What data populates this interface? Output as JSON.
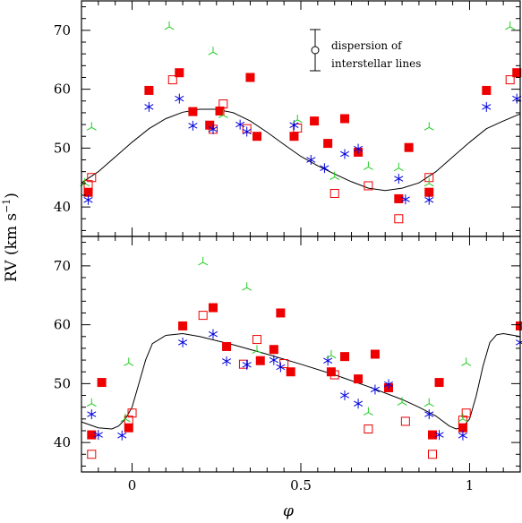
{
  "chart_data": [
    {
      "panel": "top",
      "type": "scatter",
      "xlim": [
        -0.15,
        1.15
      ],
      "ylim": [
        35,
        75
      ],
      "yticks": [
        40,
        50,
        60,
        70
      ],
      "ylabel": "RV  (km s",
      "ylabel_sup": "−1",
      "ylabel_close": ")",
      "legend": {
        "marker": "open circle with error bar",
        "label_line1": "dispersion of",
        "label_line2": "interstellar lines",
        "placement": "top-right"
      },
      "curve": [
        [
          -0.15,
          44.1
        ],
        [
          -0.1,
          46
        ],
        [
          -0.05,
          48.5
        ],
        [
          0,
          51
        ],
        [
          0.05,
          53.3
        ],
        [
          0.1,
          55
        ],
        [
          0.15,
          56.1
        ],
        [
          0.2,
          56.6
        ],
        [
          0.25,
          56.6
        ],
        [
          0.3,
          56
        ],
        [
          0.35,
          54.6
        ],
        [
          0.4,
          52.7
        ],
        [
          0.45,
          50.6
        ],
        [
          0.5,
          48.6
        ],
        [
          0.55,
          47
        ],
        [
          0.6,
          45.6
        ],
        [
          0.65,
          44.3
        ],
        [
          0.7,
          43.2
        ],
        [
          0.75,
          42.8
        ],
        [
          0.8,
          43.2
        ],
        [
          0.85,
          44.1
        ],
        [
          0.9,
          46
        ],
        [
          0.95,
          48.5
        ],
        [
          1,
          51
        ],
        [
          1.05,
          53.3
        ],
        [
          1.1,
          54.6
        ],
        [
          1.15,
          55.8
        ]
      ],
      "series": [
        {
          "marker": "filled-square",
          "color": "#ee0000",
          "points": [
            [
              -0.13,
              42.5
            ],
            [
              0.05,
              59.8
            ],
            [
              0.14,
              62.8
            ],
            [
              0.18,
              56.2
            ],
            [
              0.23,
              53.9
            ],
            [
              0.26,
              56.3
            ],
            [
              0.35,
              62
            ],
            [
              0.37,
              52
            ],
            [
              0.48,
              52
            ],
            [
              0.54,
              54.6
            ],
            [
              0.58,
              50.8
            ],
            [
              0.63,
              55
            ],
            [
              0.67,
              49.3
            ],
            [
              0.79,
              41.4
            ],
            [
              0.82,
              50.1
            ],
            [
              0.88,
              42.5
            ],
            [
              1.05,
              59.8
            ],
            [
              1.14,
              62.8
            ]
          ]
        },
        {
          "marker": "open-square",
          "color": "#ee0000",
          "points": [
            [
              -0.13,
              43.8
            ],
            [
              -0.12,
              45
            ],
            [
              0.12,
              61.6
            ],
            [
              0.24,
              53.2
            ],
            [
              0.27,
              57.5
            ],
            [
              0.34,
              53.3
            ],
            [
              0.49,
              53.4
            ],
            [
              0.6,
              42.3
            ],
            [
              0.7,
              43.6
            ],
            [
              0.79,
              38
            ],
            [
              0.88,
              45
            ],
            [
              1.12,
              61.6
            ]
          ]
        },
        {
          "marker": "asterisk",
          "color": "#0000dd",
          "points": [
            [
              -0.13,
              41.2
            ],
            [
              0.05,
              57
            ],
            [
              0.14,
              58.4
            ],
            [
              0.18,
              53.8
            ],
            [
              0.24,
              53.2
            ],
            [
              0.32,
              54
            ],
            [
              0.34,
              52.8
            ],
            [
              0.48,
              53.9
            ],
            [
              0.53,
              48
            ],
            [
              0.57,
              46.6
            ],
            [
              0.63,
              49
            ],
            [
              0.67,
              49.9
            ],
            [
              0.79,
              44.8
            ],
            [
              0.81,
              41.3
            ],
            [
              0.88,
              41.2
            ],
            [
              1.05,
              57
            ],
            [
              1.14,
              58.4
            ]
          ]
        },
        {
          "marker": "tri-spike",
          "color": "#22cc22",
          "points": [
            [
              -0.14,
              44
            ],
            [
              -0.12,
              53.5
            ],
            [
              0.11,
              70.6
            ],
            [
              0.24,
              66.3
            ],
            [
              0.27,
              55.6
            ],
            [
              0.49,
              54.8
            ],
            [
              0.6,
              45.1
            ],
            [
              0.7,
              46.8
            ],
            [
              0.79,
              46.6
            ],
            [
              0.88,
              44
            ],
            [
              0.88,
              53.5
            ],
            [
              1.12,
              70.6
            ]
          ]
        }
      ]
    },
    {
      "panel": "bottom",
      "type": "scatter",
      "xlim": [
        -0.15,
        1.15
      ],
      "ylim": [
        35,
        75
      ],
      "xticks": [
        0,
        0.5,
        1
      ],
      "xticklabels": [
        "0",
        "0.5",
        "1"
      ],
      "yticks": [
        40,
        50,
        60,
        70
      ],
      "xlabel": "φ",
      "curve": [
        [
          -0.15,
          43.5
        ],
        [
          -0.1,
          42.5
        ],
        [
          -0.06,
          42.3
        ],
        [
          -0.04,
          42.8
        ],
        [
          -0.02,
          44
        ],
        [
          0,
          46
        ],
        [
          0.02,
          50
        ],
        [
          0.04,
          54
        ],
        [
          0.06,
          56.8
        ],
        [
          0.1,
          58.2
        ],
        [
          0.15,
          58.5
        ],
        [
          0.2,
          58
        ],
        [
          0.3,
          56.6
        ],
        [
          0.4,
          55
        ],
        [
          0.5,
          53.3
        ],
        [
          0.6,
          51.5
        ],
        [
          0.7,
          49.5
        ],
        [
          0.8,
          47.3
        ],
        [
          0.85,
          46
        ],
        [
          0.9,
          44.5
        ],
        [
          0.94,
          42.8
        ],
        [
          0.96,
          42.3
        ],
        [
          0.98,
          42.6
        ],
        [
          1,
          44
        ],
        [
          1.02,
          48
        ],
        [
          1.04,
          53
        ],
        [
          1.06,
          57
        ],
        [
          1.08,
          58.3
        ],
        [
          1.1,
          58.5
        ],
        [
          1.15,
          58
        ]
      ],
      "series": [
        {
          "marker": "filled-square",
          "color": "#ee0000",
          "points": [
            [
              -0.12,
              41.3
            ],
            [
              -0.09,
              50.2
            ],
            [
              -0.01,
              42.5
            ],
            [
              0.15,
              59.8
            ],
            [
              0.24,
              62.9
            ],
            [
              0.28,
              56.3
            ],
            [
              0.38,
              53.9
            ],
            [
              0.42,
              55.8
            ],
            [
              0.44,
              62
            ],
            [
              0.47,
              52
            ],
            [
              0.59,
              52
            ],
            [
              0.63,
              54.6
            ],
            [
              0.67,
              50.8
            ],
            [
              0.72,
              55
            ],
            [
              0.76,
              49.3
            ],
            [
              0.89,
              41.3
            ],
            [
              0.91,
              50.2
            ],
            [
              0.98,
              42.5
            ],
            [
              1.15,
              59.8
            ]
          ]
        },
        {
          "marker": "open-square",
          "color": "#ee0000",
          "points": [
            [
              -0.12,
              38
            ],
            [
              -0.01,
              43.8
            ],
            [
              0,
              45
            ],
            [
              0.21,
              61.6
            ],
            [
              0.33,
              53.3
            ],
            [
              0.37,
              57.5
            ],
            [
              0.45,
              53.4
            ],
            [
              0.6,
              51.5
            ],
            [
              0.7,
              42.3
            ],
            [
              0.81,
              43.6
            ],
            [
              0.89,
              38
            ],
            [
              0.98,
              43.8
            ],
            [
              0.99,
              45
            ]
          ]
        },
        {
          "marker": "asterisk",
          "color": "#0000dd",
          "points": [
            [
              -0.12,
              44.8
            ],
            [
              -0.1,
              41.3
            ],
            [
              -0.03,
              41.2
            ],
            [
              0.15,
              57
            ],
            [
              0.24,
              58.4
            ],
            [
              0.28,
              53.8
            ],
            [
              0.34,
              53.2
            ],
            [
              0.42,
              54
            ],
            [
              0.44,
              52.8
            ],
            [
              0.58,
              53.9
            ],
            [
              0.63,
              48
            ],
            [
              0.67,
              46.6
            ],
            [
              0.72,
              49
            ],
            [
              0.76,
              49.9
            ],
            [
              0.88,
              44.8
            ],
            [
              0.91,
              41.3
            ],
            [
              0.98,
              41.2
            ],
            [
              1.15,
              57
            ]
          ]
        },
        {
          "marker": "tri-spike",
          "color": "#22cc22",
          "points": [
            [
              -0.12,
              46.6
            ],
            [
              -0.02,
              44
            ],
            [
              -0.01,
              53.5
            ],
            [
              0.21,
              70.6
            ],
            [
              0.34,
              66.3
            ],
            [
              0.37,
              55.6
            ],
            [
              0.59,
              54.8
            ],
            [
              0.7,
              45.1
            ],
            [
              0.8,
              46.8
            ],
            [
              0.88,
              46.6
            ],
            [
              0.98,
              44
            ],
            [
              0.99,
              53.5
            ]
          ]
        }
      ]
    }
  ]
}
